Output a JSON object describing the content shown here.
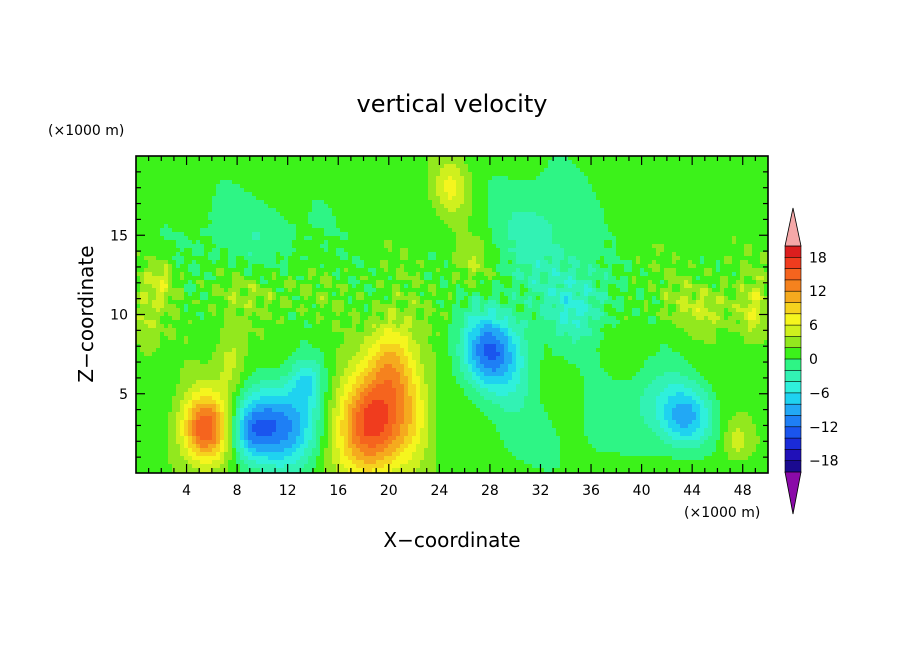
{
  "chart_data": {
    "type": "heatmap",
    "title": "vertical velocity",
    "xlabel": "X−coordinate",
    "ylabel": "Z−coordinate",
    "x_unit": "(×1000 m)",
    "y_unit": "(×1000 m)",
    "xlim": [
      0,
      50
    ],
    "ylim": [
      0,
      20
    ],
    "x_ticks": [
      4,
      8,
      12,
      16,
      20,
      24,
      28,
      32,
      36,
      40,
      44,
      48
    ],
    "y_ticks": [
      5,
      10,
      15
    ],
    "colorbar": {
      "levels": [
        -20,
        -18,
        -16,
        -14,
        -12,
        -10,
        -8,
        -6,
        -4,
        -2,
        0,
        2,
        4,
        6,
        8,
        10,
        12,
        14,
        16,
        18,
        20
      ],
      "colors": [
        "#1a0a90",
        "#2010b8",
        "#1a2bd8",
        "#1a55ee",
        "#1e7ff5",
        "#22a8f5",
        "#1fd2f0",
        "#2ff0dc",
        "#32f2b4",
        "#2ef585",
        "#3cf21a",
        "#92e81e",
        "#cff01e",
        "#f5f51e",
        "#f5d21e",
        "#f5aa1e",
        "#f5821e",
        "#f5641e",
        "#f03c1e",
        "#dc1e1e"
      ],
      "under_color": "#8a0aa8",
      "over_color": "#f5a8a8",
      "tick_labels": [
        "18",
        "12",
        "6",
        "0",
        "−6",
        "−12",
        "−18"
      ]
    },
    "features": [
      {
        "x": 5.5,
        "z": 2.8,
        "w": 1.9,
        "h": 2.2,
        "amp": 15
      },
      {
        "x": 11.5,
        "z": 3.0,
        "w": 3.2,
        "h": 2.6,
        "amp": -12
      },
      {
        "x": 9.0,
        "z": 2.6,
        "w": 1.6,
        "h": 1.8,
        "amp": -6
      },
      {
        "x": 13.5,
        "z": 5.8,
        "w": 1.3,
        "h": 1.5,
        "amp": -6
      },
      {
        "x": 7.5,
        "z": 7.0,
        "w": 1.2,
        "h": 2.5,
        "amp": 4
      },
      {
        "x": 18.5,
        "z": 3.0,
        "w": 2.8,
        "h": 3.2,
        "amp": 16
      },
      {
        "x": 20.3,
        "z": 7.0,
        "w": 1.8,
        "h": 2.8,
        "amp": 8
      },
      {
        "x": 22.0,
        "z": 4.0,
        "w": 1.5,
        "h": 3.0,
        "amp": 4
      },
      {
        "x": 27.8,
        "z": 7.8,
        "w": 2.2,
        "h": 2.3,
        "amp": -11
      },
      {
        "x": 29.5,
        "z": 6.5,
        "w": 2.5,
        "h": 3.0,
        "amp": -4
      },
      {
        "x": 43.5,
        "z": 3.5,
        "w": 2.0,
        "h": 2.0,
        "amp": -9
      },
      {
        "x": 41.0,
        "z": 4.5,
        "w": 2.5,
        "h": 2.5,
        "amp": -4
      },
      {
        "x": 2.0,
        "z": 12.0,
        "w": 1.2,
        "h": 1.5,
        "amp": 4
      },
      {
        "x": 0.8,
        "z": 9.0,
        "w": 1.0,
        "h": 1.8,
        "amp": 3
      },
      {
        "x": 25.0,
        "z": 18.0,
        "w": 1.4,
        "h": 1.8,
        "amp": 5
      },
      {
        "x": 26.5,
        "z": 13.5,
        "w": 1.5,
        "h": 1.5,
        "amp": 3
      },
      {
        "x": 48.8,
        "z": 10.0,
        "w": 1.0,
        "h": 2.0,
        "amp": 4
      },
      {
        "x": 45.0,
        "z": 10.5,
        "w": 3.0,
        "h": 1.5,
        "amp": 3
      },
      {
        "x": 32.0,
        "z": 15.0,
        "w": 4.0,
        "h": 4.0,
        "amp": -4
      },
      {
        "x": 35.0,
        "z": 10.5,
        "w": 2.5,
        "h": 2.5,
        "amp": -5
      },
      {
        "x": 31.0,
        "z": 2.0,
        "w": 3.0,
        "h": 2.0,
        "amp": -2
      },
      {
        "x": 9.0,
        "z": 15.0,
        "w": 6.0,
        "h": 3.0,
        "amp": -2.5
      },
      {
        "x": 47.5,
        "z": 2.0,
        "w": 1.0,
        "h": 1.2,
        "amp": 4
      },
      {
        "x": 36.5,
        "z": 3.0,
        "w": 2.0,
        "h": 3.0,
        "amp": -2
      },
      {
        "x": 10.0,
        "z": 11.5,
        "w": 4.0,
        "h": 1.5,
        "amp": 2
      }
    ]
  }
}
